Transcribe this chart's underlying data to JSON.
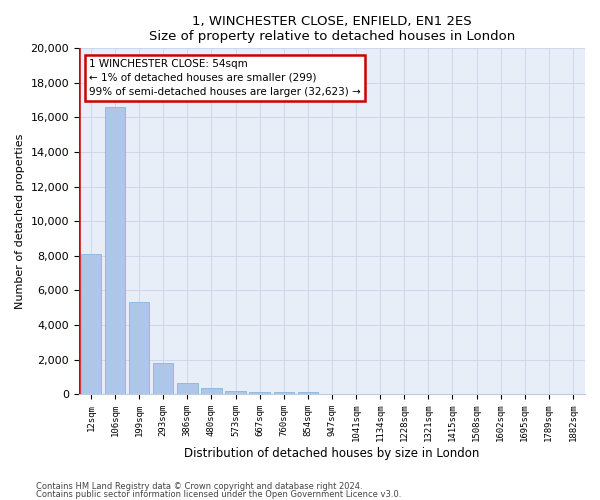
{
  "title": "1, WINCHESTER CLOSE, ENFIELD, EN1 2ES",
  "subtitle": "Size of property relative to detached houses in London",
  "xlabel": "Distribution of detached houses by size in London",
  "ylabel": "Number of detached properties",
  "bar_color": "#aec6e8",
  "bar_edge_color": "#7aaedc",
  "categories": [
    "12sqm",
    "106sqm",
    "199sqm",
    "293sqm",
    "386sqm",
    "480sqm",
    "573sqm",
    "667sqm",
    "760sqm",
    "854sqm",
    "947sqm",
    "1041sqm",
    "1134sqm",
    "1228sqm",
    "1321sqm",
    "1415sqm",
    "1508sqm",
    "1602sqm",
    "1695sqm",
    "1789sqm",
    "1882sqm"
  ],
  "values": [
    8100,
    16600,
    5300,
    1800,
    650,
    350,
    200,
    150,
    130,
    100,
    0,
    0,
    0,
    0,
    0,
    0,
    0,
    0,
    0,
    0,
    0
  ],
  "ylim": [
    0,
    20000
  ],
  "yticks": [
    0,
    2000,
    4000,
    6000,
    8000,
    10000,
    12000,
    14000,
    16000,
    18000,
    20000
  ],
  "annotation_line1": "1 WINCHESTER CLOSE: 54sqm",
  "annotation_line2": "← 1% of detached houses are smaller (299)",
  "annotation_line3": "99% of semi-detached houses are larger (32,623) →",
  "footnote1": "Contains HM Land Registry data © Crown copyright and database right 2024.",
  "footnote2": "Contains public sector information licensed under the Open Government Licence v3.0.",
  "background_color": "#ffffff",
  "axes_bg_color": "#e8eef8",
  "grid_color": "#c8d4e8",
  "annotation_box_color": "#ffffff",
  "annotation_box_edge": "#cc0000",
  "red_line_color": "#cc0000"
}
